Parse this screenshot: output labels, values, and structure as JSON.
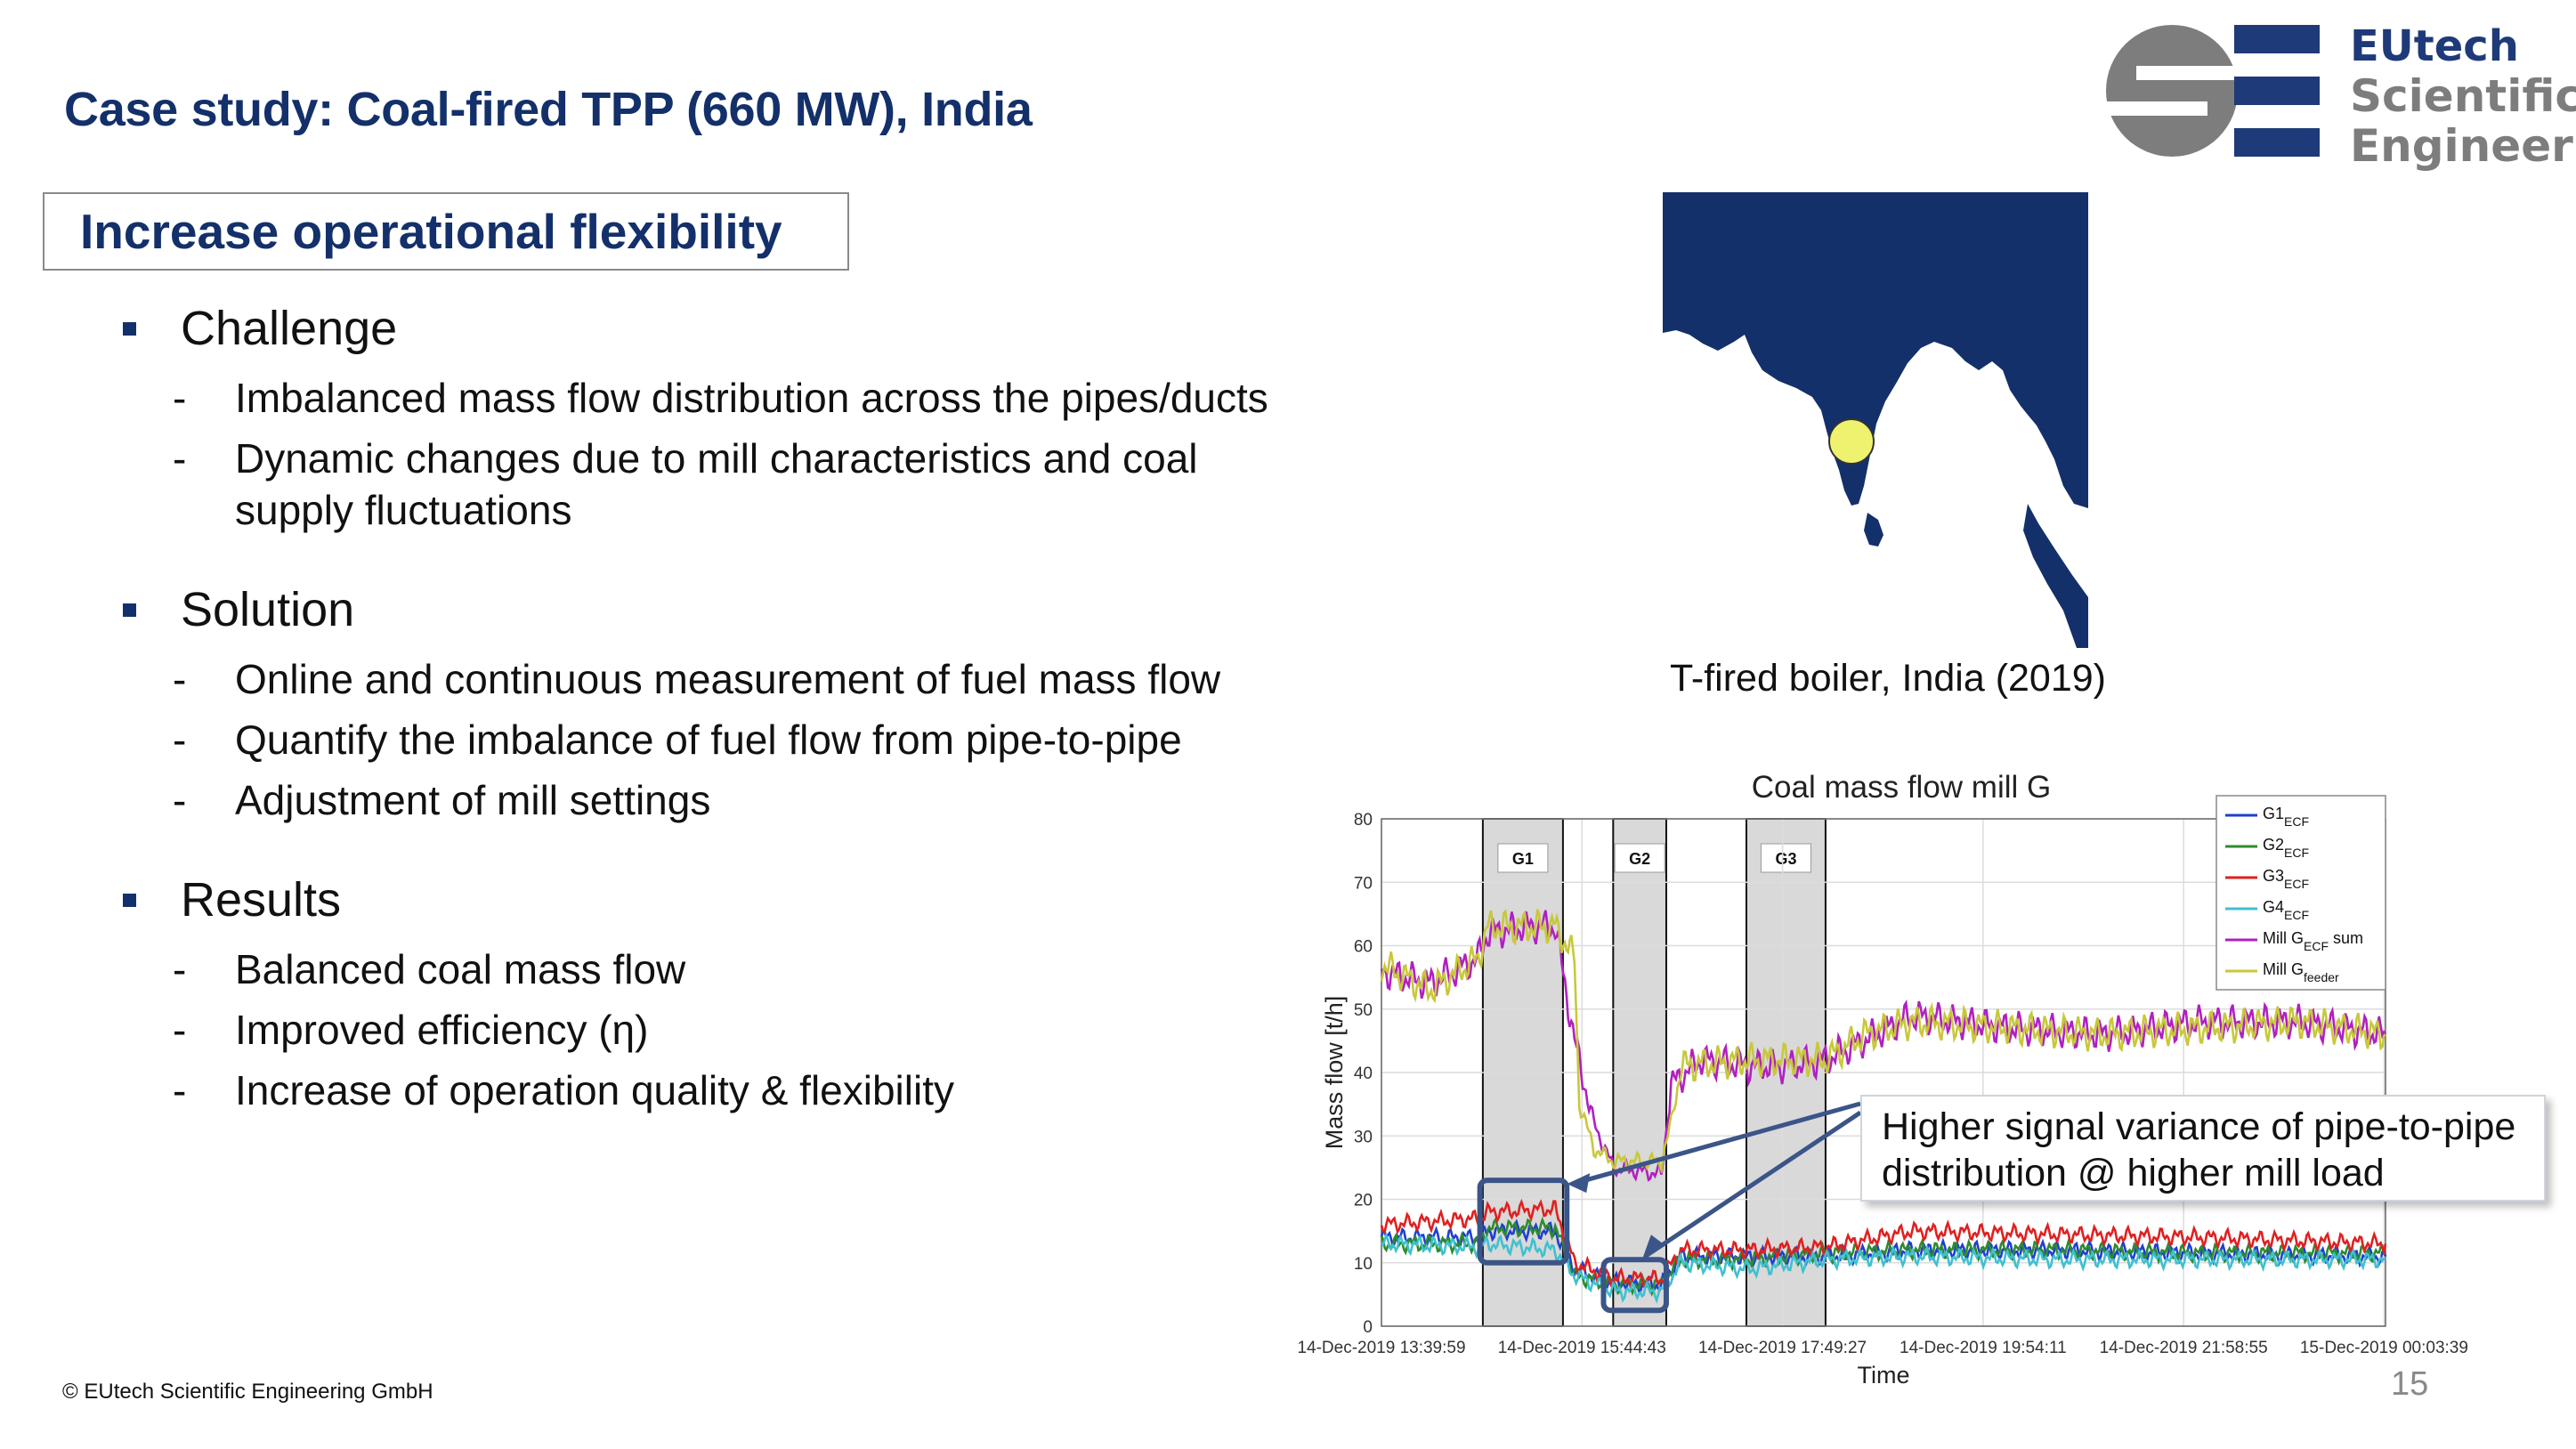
{
  "slide": {
    "title": "Case study: Coal-fired TPP (660 MW), India",
    "box_title": "Increase operational flexibility",
    "footer": "©  EUtech Scientific Engineering GmbH",
    "page_number": "15"
  },
  "logo": {
    "line1": "EUtech",
    "line2": "Scientific",
    "line3": "Engineering",
    "colors": {
      "grey": "#7d7d7d",
      "blue": "#1f3a78"
    }
  },
  "sections": [
    {
      "label": "Challenge",
      "items": [
        "Imbalanced mass flow distribution across the pipes/ducts",
        "Dynamic changes due to mill characteristics and coal supply fluctuations"
      ]
    },
    {
      "label": "Solution",
      "items": [
        "Online and continuous measurement of fuel mass flow",
        "Quantify the imbalance of fuel flow from pipe-to-pipe",
        "Adjustment of mill settings"
      ]
    },
    {
      "label": "Results",
      "items": [
        "Balanced coal mass flow",
        "Improved efficiency (η)",
        "Increase of operation quality & flexibility"
      ]
    }
  ],
  "map": {
    "caption": "T-fired boiler, India (2019)",
    "land_color": "#13306a",
    "marker_color": "#eef26e"
  },
  "callout": {
    "line1": "Higher signal variance of pipe-to-pipe",
    "line2": "distribution @ higher mill load"
  },
  "chart_data": {
    "type": "line",
    "title": "Coal mass flow mill G",
    "xlabel": "Time",
    "ylabel": "Mass flow [t/h]",
    "ylim": [
      0,
      80
    ],
    "yticks": [
      0,
      10,
      20,
      30,
      40,
      50,
      60,
      70,
      80
    ],
    "x_range_hours": [
      0,
      10.4
    ],
    "xtick_labels": [
      "14-Dec-2019 13:39:59",
      "14-Dec-2019 15:44:43",
      "14-Dec-2019 17:49:27",
      "14-Dec-2019 19:54:11",
      "14-Dec-2019 21:58:55",
      "15-Dec-2019 00:03:39"
    ],
    "grid": true,
    "legend_position": "top-right",
    "shaded_regions": [
      {
        "label": "G1",
        "from": 1.05,
        "to": 1.88
      },
      {
        "label": "G2",
        "from": 2.4,
        "to": 2.95
      },
      {
        "label": "G3",
        "from": 3.78,
        "to": 4.6
      }
    ],
    "series": [
      {
        "name": "G1",
        "sub": "ECF",
        "color": "#1f3fd1",
        "points": [
          [
            0,
            14
          ],
          [
            1.0,
            14
          ],
          [
            1.1,
            15
          ],
          [
            1.8,
            15
          ],
          [
            2.0,
            9
          ],
          [
            2.4,
            7
          ],
          [
            2.9,
            6.5
          ],
          [
            3.1,
            11
          ],
          [
            3.8,
            11
          ],
          [
            4.6,
            11
          ],
          [
            5.5,
            12
          ],
          [
            7.0,
            12
          ],
          [
            8.5,
            11.5
          ],
          [
            10.4,
            11
          ]
        ]
      },
      {
        "name": "G2",
        "sub": "ECF",
        "color": "#2e8b2e",
        "points": [
          [
            0,
            13
          ],
          [
            1.0,
            13
          ],
          [
            1.1,
            15.5
          ],
          [
            1.8,
            15.5
          ],
          [
            2.0,
            8
          ],
          [
            2.4,
            6.5
          ],
          [
            2.9,
            6.5
          ],
          [
            3.1,
            10.5
          ],
          [
            3.8,
            10.5
          ],
          [
            4.6,
            11.5
          ],
          [
            5.5,
            12
          ],
          [
            7.0,
            12
          ],
          [
            8.5,
            11.5
          ],
          [
            10.4,
            11.5
          ]
        ]
      },
      {
        "name": "G3",
        "sub": "ECF",
        "color": "#e02020",
        "points": [
          [
            0,
            16
          ],
          [
            1.0,
            17
          ],
          [
            1.1,
            18
          ],
          [
            1.8,
            18.5
          ],
          [
            2.0,
            10
          ],
          [
            2.4,
            7.5
          ],
          [
            2.9,
            7.5
          ],
          [
            3.1,
            12
          ],
          [
            3.8,
            12
          ],
          [
            4.6,
            12.5
          ],
          [
            5.5,
            15
          ],
          [
            7.0,
            14.5
          ],
          [
            8.5,
            14
          ],
          [
            10.4,
            13
          ]
        ]
      },
      {
        "name": "G4",
        "sub": "ECF",
        "color": "#3fc0d0",
        "points": [
          [
            0,
            13
          ],
          [
            1.0,
            12.5
          ],
          [
            1.1,
            13
          ],
          [
            1.8,
            12
          ],
          [
            2.0,
            8
          ],
          [
            2.4,
            5.5
          ],
          [
            2.9,
            5.5
          ],
          [
            3.1,
            10
          ],
          [
            3.8,
            9
          ],
          [
            4.6,
            10.5
          ],
          [
            5.5,
            11
          ],
          [
            7.0,
            10.5
          ],
          [
            8.5,
            10.5
          ],
          [
            10.4,
            10.5
          ]
        ]
      },
      {
        "name": "Mill G",
        "sub": "ECF",
        "suffix": " sum",
        "color": "#b020c0",
        "points": [
          [
            0,
            56
          ],
          [
            0.5,
            54
          ],
          [
            1.0,
            58
          ],
          [
            1.1,
            62
          ],
          [
            1.5,
            63
          ],
          [
            1.8,
            63
          ],
          [
            2.0,
            45
          ],
          [
            2.2,
            32
          ],
          [
            2.4,
            25
          ],
          [
            2.9,
            24
          ],
          [
            3.0,
            38
          ],
          [
            3.3,
            42
          ],
          [
            3.8,
            41
          ],
          [
            4.2,
            41
          ],
          [
            4.6,
            42
          ],
          [
            5.0,
            45
          ],
          [
            5.5,
            49
          ],
          [
            6.5,
            47
          ],
          [
            7.5,
            46
          ],
          [
            8.5,
            48
          ],
          [
            9.5,
            48
          ],
          [
            10.4,
            46
          ]
        ]
      },
      {
        "name": "Mill G",
        "sub": "feeder",
        "suffix": "",
        "color": "#c8c83a",
        "points": [
          [
            0,
            57
          ],
          [
            0.5,
            53
          ],
          [
            1.0,
            58
          ],
          [
            1.1,
            63
          ],
          [
            1.8,
            63
          ],
          [
            2.0,
            58
          ],
          [
            2.05,
            35
          ],
          [
            2.2,
            28
          ],
          [
            2.4,
            26
          ],
          [
            2.9,
            26
          ],
          [
            3.0,
            32
          ],
          [
            3.1,
            41
          ],
          [
            3.8,
            42
          ],
          [
            4.6,
            42
          ],
          [
            5.0,
            46
          ],
          [
            5.5,
            48
          ],
          [
            6.5,
            47
          ],
          [
            7.5,
            46
          ],
          [
            8.5,
            47
          ],
          [
            9.5,
            48
          ],
          [
            10.4,
            46
          ]
        ]
      }
    ]
  }
}
